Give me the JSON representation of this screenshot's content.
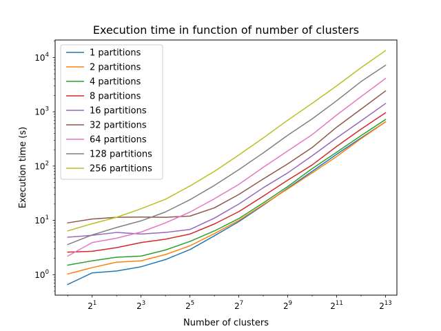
{
  "chart_data": {
    "type": "line",
    "title": "Execution time in function of number of clusters",
    "xlabel": "Number of clusters",
    "ylabel": "Execution time (s)",
    "x_scale": "log2",
    "y_scale": "log10",
    "xlim": [
      0.7,
      11314
    ],
    "ylim": [
      0.42,
      21000
    ],
    "x_ticks": [
      {
        "base": "2",
        "exp": "1"
      },
      {
        "base": "2",
        "exp": "3"
      },
      {
        "base": "2",
        "exp": "5"
      },
      {
        "base": "2",
        "exp": "7"
      },
      {
        "base": "2",
        "exp": "9"
      },
      {
        "base": "2",
        "exp": "11"
      },
      {
        "base": "2",
        "exp": "13"
      }
    ],
    "y_ticks": [
      {
        "base": "10",
        "exp": "0"
      },
      {
        "base": "10",
        "exp": "1"
      },
      {
        "base": "10",
        "exp": "2"
      },
      {
        "base": "10",
        "exp": "3"
      },
      {
        "base": "10",
        "exp": "4"
      }
    ],
    "grid": false,
    "legend_position": "top-left",
    "x": [
      1,
      2,
      4,
      8,
      16,
      32,
      64,
      128,
      256,
      512,
      1024,
      2048,
      4096,
      8192
    ],
    "series": [
      {
        "name": "1 partitions",
        "color": "#1f77b4",
        "values": [
          0.66,
          1.08,
          1.17,
          1.4,
          1.9,
          2.9,
          5.2,
          9.5,
          19,
          39,
          80,
          165,
          330,
          650
        ]
      },
      {
        "name": "2 partitions",
        "color": "#ff7f0e",
        "values": [
          1.03,
          1.35,
          1.7,
          1.8,
          2.35,
          3.4,
          5.7,
          10,
          19.5,
          38,
          75,
          150,
          320,
          650
        ]
      },
      {
        "name": "4 partitions",
        "color": "#2ca02c",
        "values": [
          1.5,
          1.8,
          2.1,
          2.2,
          2.85,
          4.1,
          6.4,
          10.8,
          21,
          42,
          90,
          180,
          365,
          720
        ]
      },
      {
        "name": "8 partitions",
        "color": "#d62728",
        "values": [
          2.6,
          2.7,
          3.15,
          3.9,
          4.5,
          5.6,
          8.6,
          14.5,
          28,
          55,
          105,
          230,
          480,
          960
        ]
      },
      {
        "name": "16 partitions",
        "color": "#9467bd",
        "values": [
          4.9,
          5.3,
          6.0,
          5.6,
          6.0,
          6.8,
          11,
          20,
          40,
          75,
          155,
          330,
          680,
          1420
        ]
      },
      {
        "name": "32 partitions",
        "color": "#8c564b",
        "values": [
          9.0,
          10.6,
          11.4,
          11.5,
          11.4,
          12,
          17,
          30,
          58,
          110,
          220,
          520,
          1120,
          2420
        ]
      },
      {
        "name": "64 partitions",
        "color": "#e377c2",
        "values": [
          2.2,
          3.9,
          4.7,
          6.1,
          9.0,
          14.2,
          25,
          46,
          95,
          190,
          380,
          870,
          1900,
          4100
        ]
      },
      {
        "name": "128 partitions",
        "color": "#7f7f7f",
        "values": [
          3.6,
          5.4,
          7.4,
          9.8,
          14.3,
          24,
          44,
          86,
          175,
          370,
          740,
          1600,
          3600,
          7200
        ]
      },
      {
        "name": "256 partitions",
        "color": "#bcbd22",
        "values": [
          6.4,
          8.7,
          11.4,
          16.4,
          24.5,
          43,
          80,
          160,
          330,
          700,
          1430,
          3000,
          6500,
          13400
        ]
      }
    ]
  }
}
